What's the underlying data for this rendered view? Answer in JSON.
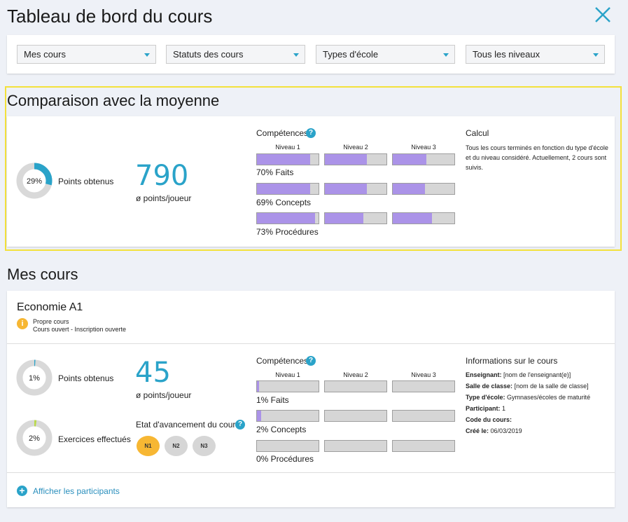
{
  "page": {
    "title": "Tableau de bord du cours"
  },
  "filters": [
    {
      "label": "Mes cours"
    },
    {
      "label": "Statuts des cours"
    },
    {
      "label": "Types d'école"
    },
    {
      "label": "Tous les niveaux"
    }
  ],
  "comparison": {
    "title": "Comparaison avec la moyenne",
    "donut": {
      "percent_label": "29%",
      "value": 0.29,
      "label": "Points obtenus"
    },
    "points": {
      "value": "790",
      "sub": "ø points/joueur"
    },
    "competences": {
      "title": "Compétences",
      "levels": [
        "Niveau 1",
        "Niveau 2",
        "Niveau 3"
      ],
      "rows": [
        {
          "label": "70% Faits",
          "fills": [
            0.86,
            0.68,
            0.54
          ]
        },
        {
          "label": "69% Concepts",
          "fills": [
            0.86,
            0.68,
            0.52
          ]
        },
        {
          "label": "73% Procédures",
          "fills": [
            0.94,
            0.62,
            0.64
          ]
        }
      ]
    },
    "calcul": {
      "title": "Calcul",
      "text": "Tous les cours terminés en fonction du type d'école et du niveau considéré. Actuellement, 2 cours sont suivis."
    }
  },
  "mes_cours": {
    "title": "Mes cours",
    "course": {
      "name": "Economie A1",
      "status_line1": "Propre cours",
      "status_line2": "Cours ouvert - Inscription ouverte",
      "donut_points": {
        "percent_label": "1%",
        "value": 0.01,
        "label": "Points obtenus"
      },
      "donut_exercises": {
        "percent_label": "2%",
        "value": 0.02,
        "label": "Exercices effectués"
      },
      "points": {
        "value": "45",
        "sub": "ø points/joueur"
      },
      "progress": {
        "title": "Etat d'avancement du cours",
        "buttons": [
          "N1",
          "N2",
          "N3"
        ]
      },
      "competences": {
        "title": "Compétences",
        "levels": [
          "Niveau 1",
          "Niveau 2",
          "Niveau 3"
        ],
        "rows": [
          {
            "label": "1% Faits",
            "fills": [
              0.03,
              0,
              0
            ]
          },
          {
            "label": "2% Concepts",
            "fills": [
              0.07,
              0,
              0
            ]
          },
          {
            "label": "0% Procédures",
            "fills": [
              0,
              0,
              0
            ]
          }
        ]
      },
      "info": {
        "title": "Informations sur le cours",
        "lines": [
          {
            "key": "Enseignant:",
            "value": "[nom de l'enseignant(e)]"
          },
          {
            "key": "Salle de classe:",
            "value": "[nom de la salle de classe]"
          },
          {
            "key": "Type d'école:",
            "value": "Gymnases/écoles de maturité"
          },
          {
            "key": "Participant:",
            "value": "1"
          },
          {
            "key": "Code du cours:",
            "value": ""
          },
          {
            "key": "Créé le:",
            "value": "06/03/2019"
          }
        ]
      },
      "show_participants": "Afficher les participants"
    }
  },
  "colors": {
    "accent": "#2aa3c9",
    "bar_fill": "#ab93e8",
    "highlight": "#f3e13b",
    "active_level": "#f7b733",
    "donut_track": "#d9d9d9",
    "donut_exercise": "#b9d94a"
  },
  "icons": {
    "close": "close-icon",
    "help": "help-icon",
    "info": "info-icon",
    "add": "plus-circle-icon",
    "dropdown": "chevron-down-icon"
  }
}
